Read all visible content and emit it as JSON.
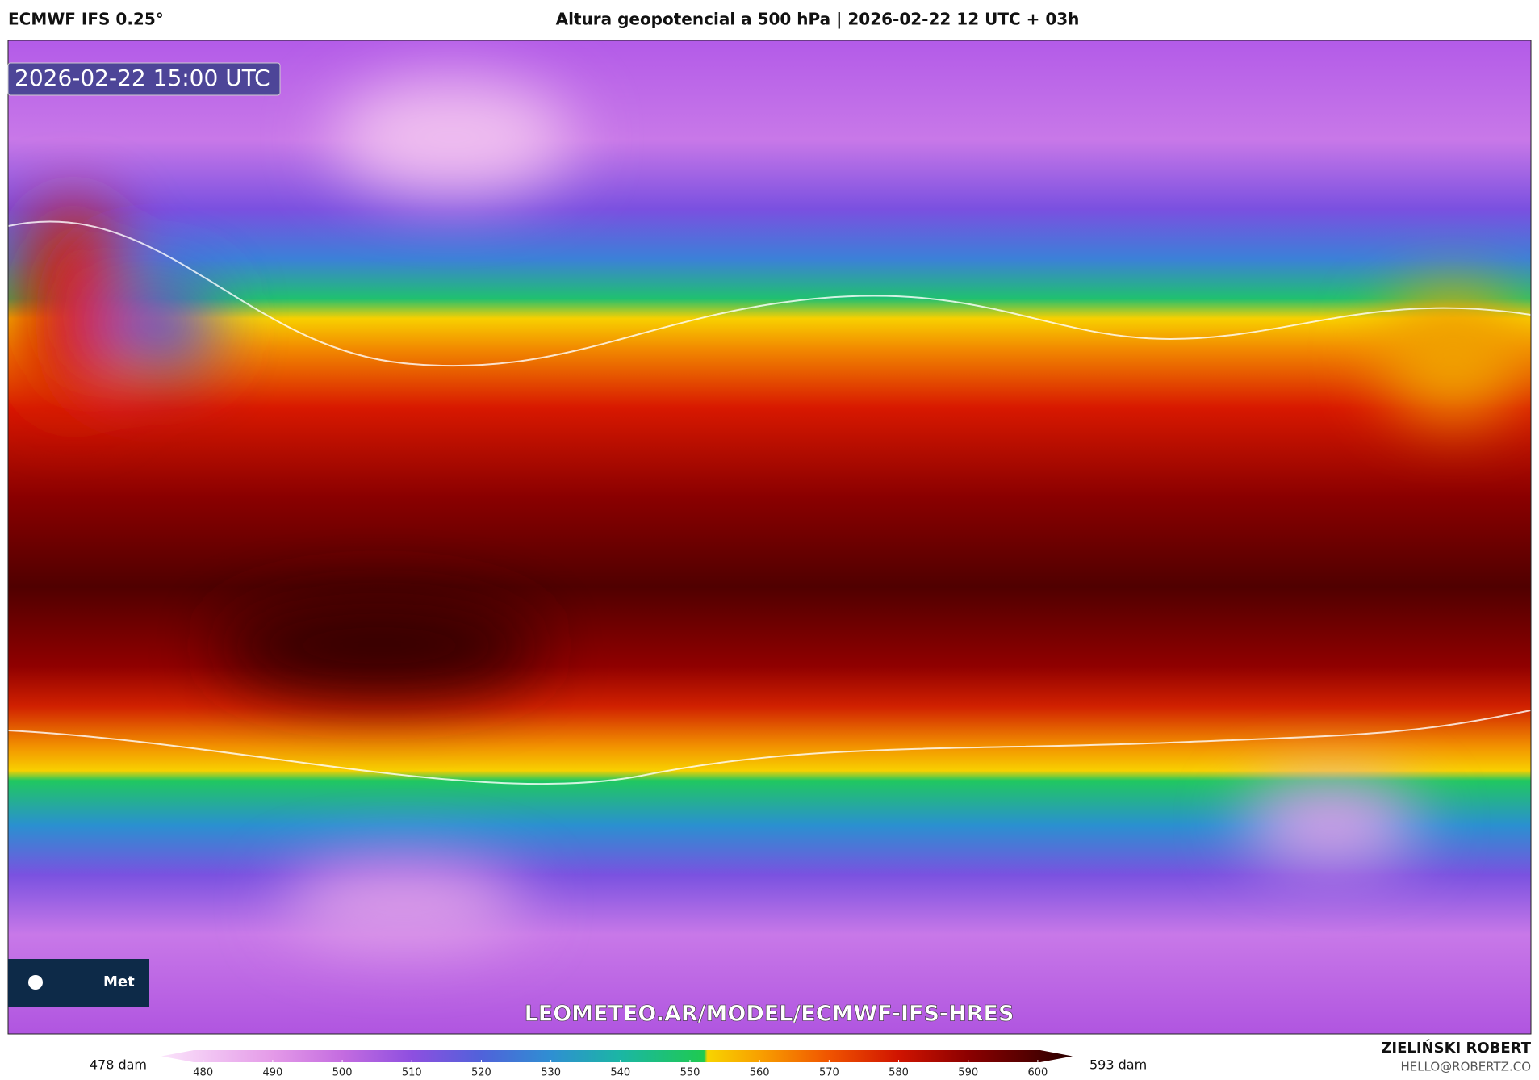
{
  "header": {
    "model": "ECMWF IFS 0.25°",
    "title": "Altura geopotencial a 500 hPa | 2026-02-22 12 UTC + 03h"
  },
  "map": {
    "valid_time": "2026-02-22 15:00 UTC",
    "logo_text": "Met",
    "watermark": "LEOMETEO.AR/MODEL/ECMWF-IFS-HRES"
  },
  "colorbar": {
    "min_label": "478 dam",
    "max_label": "593 dam",
    "range": [
      474,
      605
    ],
    "ticks": [
      480,
      490,
      500,
      510,
      520,
      530,
      540,
      550,
      560,
      570,
      580,
      590,
      600
    ],
    "stops": [
      {
        "value": 474,
        "color": "#fbe4fb"
      },
      {
        "value": 490,
        "color": "#e49ae8"
      },
      {
        "value": 500,
        "color": "#c46ce0"
      },
      {
        "value": 510,
        "color": "#8e4fe0"
      },
      {
        "value": 520,
        "color": "#5062da"
      },
      {
        "value": 530,
        "color": "#2f8fd2"
      },
      {
        "value": 540,
        "color": "#1bb6a4"
      },
      {
        "value": 552,
        "color": "#1fca50"
      },
      {
        "value": 552.5,
        "color": "#f8d400"
      },
      {
        "value": 560,
        "color": "#f8a000"
      },
      {
        "value": 570,
        "color": "#f05400"
      },
      {
        "value": 580,
        "color": "#d01400"
      },
      {
        "value": 590,
        "color": "#8c0000"
      },
      {
        "value": 605,
        "color": "#2a0000"
      }
    ]
  },
  "credit": {
    "author": "ZIELIŃSKI ROBERT",
    "email": "HELLO@ROBERTZ.CO"
  }
}
